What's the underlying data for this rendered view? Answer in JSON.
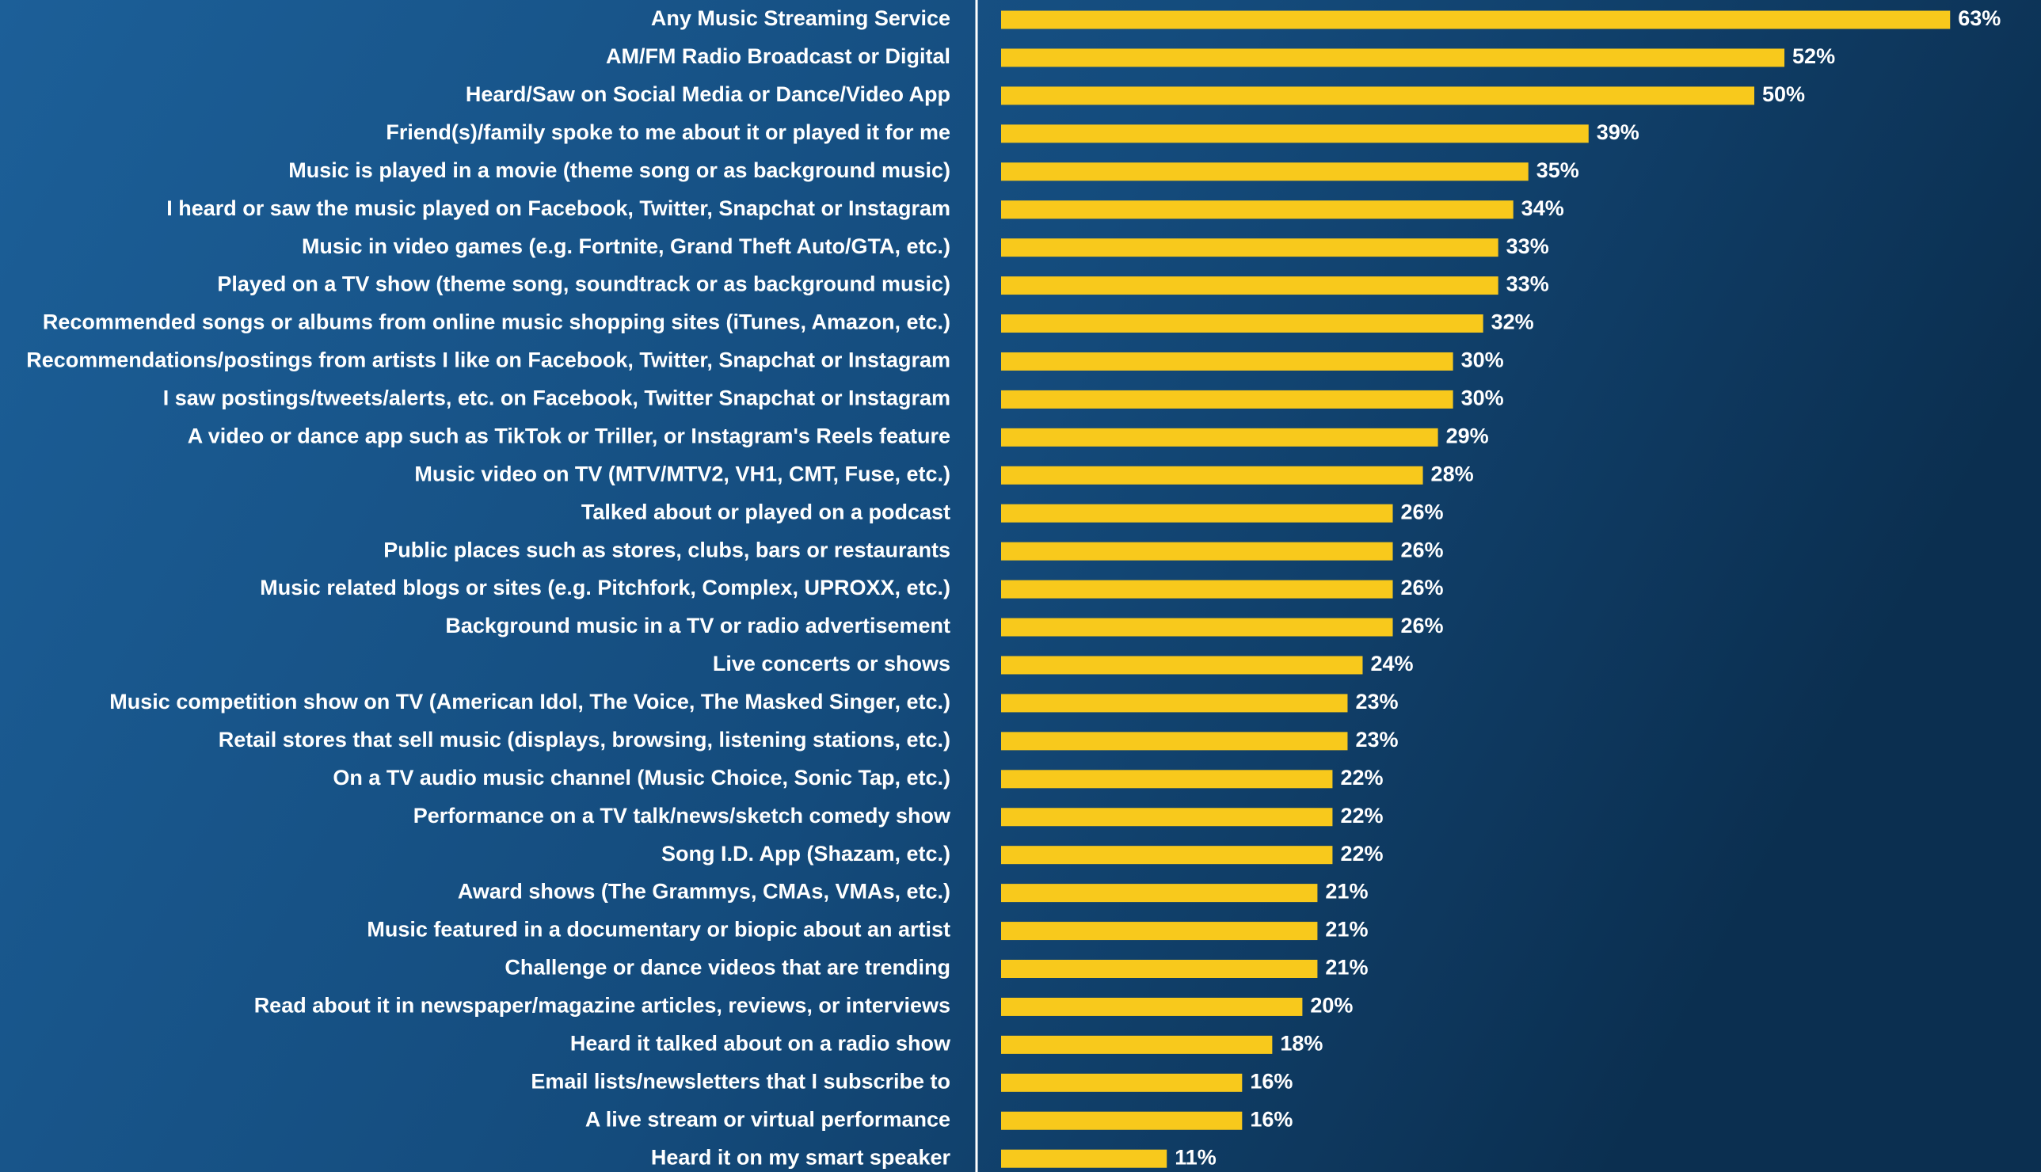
{
  "chart_data": {
    "type": "hbar",
    "categories": [
      "Any Music Streaming Service",
      "AM/FM Radio Broadcast or Digital",
      "Heard/Saw on Social Media or Dance/Video App",
      "Friend(s)/family spoke to me about it or played it for me",
      "Music is played in a movie (theme song or as background music)",
      "I heard or saw the music played on Facebook, Twitter, Snapchat or Instagram",
      "Music in video games (e.g. Fortnite, Grand Theft Auto/GTA, etc.)",
      "Played on a TV show  (theme song, soundtrack or as background music)",
      "Recommended songs or albums from online music shopping sites (iTunes, Amazon, etc.)",
      "Recommendations/postings from artists I like on Facebook, Twitter, Snapchat or Instagram",
      "I saw postings/tweets/alerts, etc. on Facebook, Twitter Snapchat or Instagram",
      "A video or dance app such as TikTok or Triller, or Instagram's Reels feature",
      "Music video on TV (MTV/MTV2, VH1, CMT, Fuse, etc.)",
      "Talked about or played on a podcast",
      "Public places such as stores, clubs, bars or restaurants",
      "Music related blogs or sites (e.g. Pitchfork, Complex, UPROXX, etc.)",
      "Background music in a TV or radio advertisement",
      "Live concerts or shows",
      "Music competition show on TV (American Idol, The Voice, The Masked Singer, etc.)",
      "Retail stores that sell music (displays, browsing, listening stations, etc.)",
      "On a TV audio music channel (Music Choice, Sonic Tap, etc.)",
      "Performance on a TV talk/news/sketch comedy show",
      "Song I.D. App (Shazam, etc.)",
      "Award shows (The Grammys, CMAs, VMAs, etc.)",
      "Music featured in a documentary or biopic about an artist",
      "Challenge or dance videos that are trending",
      "Read about it in newspaper/magazine articles, reviews, or interviews",
      "Heard it talked about on a radio show",
      "Email lists/newsletters that I subscribe to",
      "A live stream or virtual performance",
      "Heard it on my smart speaker"
    ],
    "values": [
      63,
      52,
      50,
      39,
      35,
      34,
      33,
      33,
      32,
      30,
      30,
      29,
      28,
      26,
      26,
      26,
      26,
      24,
      23,
      23,
      22,
      22,
      22,
      21,
      21,
      21,
      20,
      18,
      16,
      16,
      11
    ],
    "value_labels": [
      "63%",
      "52%",
      "50%",
      "39%",
      "35%",
      "34%",
      "33%",
      "33%",
      "32%",
      "30%",
      "30%",
      "29%",
      "28%",
      "26%",
      "26%",
      "26%",
      "26%",
      "24%",
      "23%",
      "23%",
      "22%",
      "22%",
      "22%",
      "21%",
      "21%",
      "21%",
      "20%",
      "18%",
      "16%",
      "16%",
      "11%"
    ],
    "color": "#f8c91c"
  }
}
